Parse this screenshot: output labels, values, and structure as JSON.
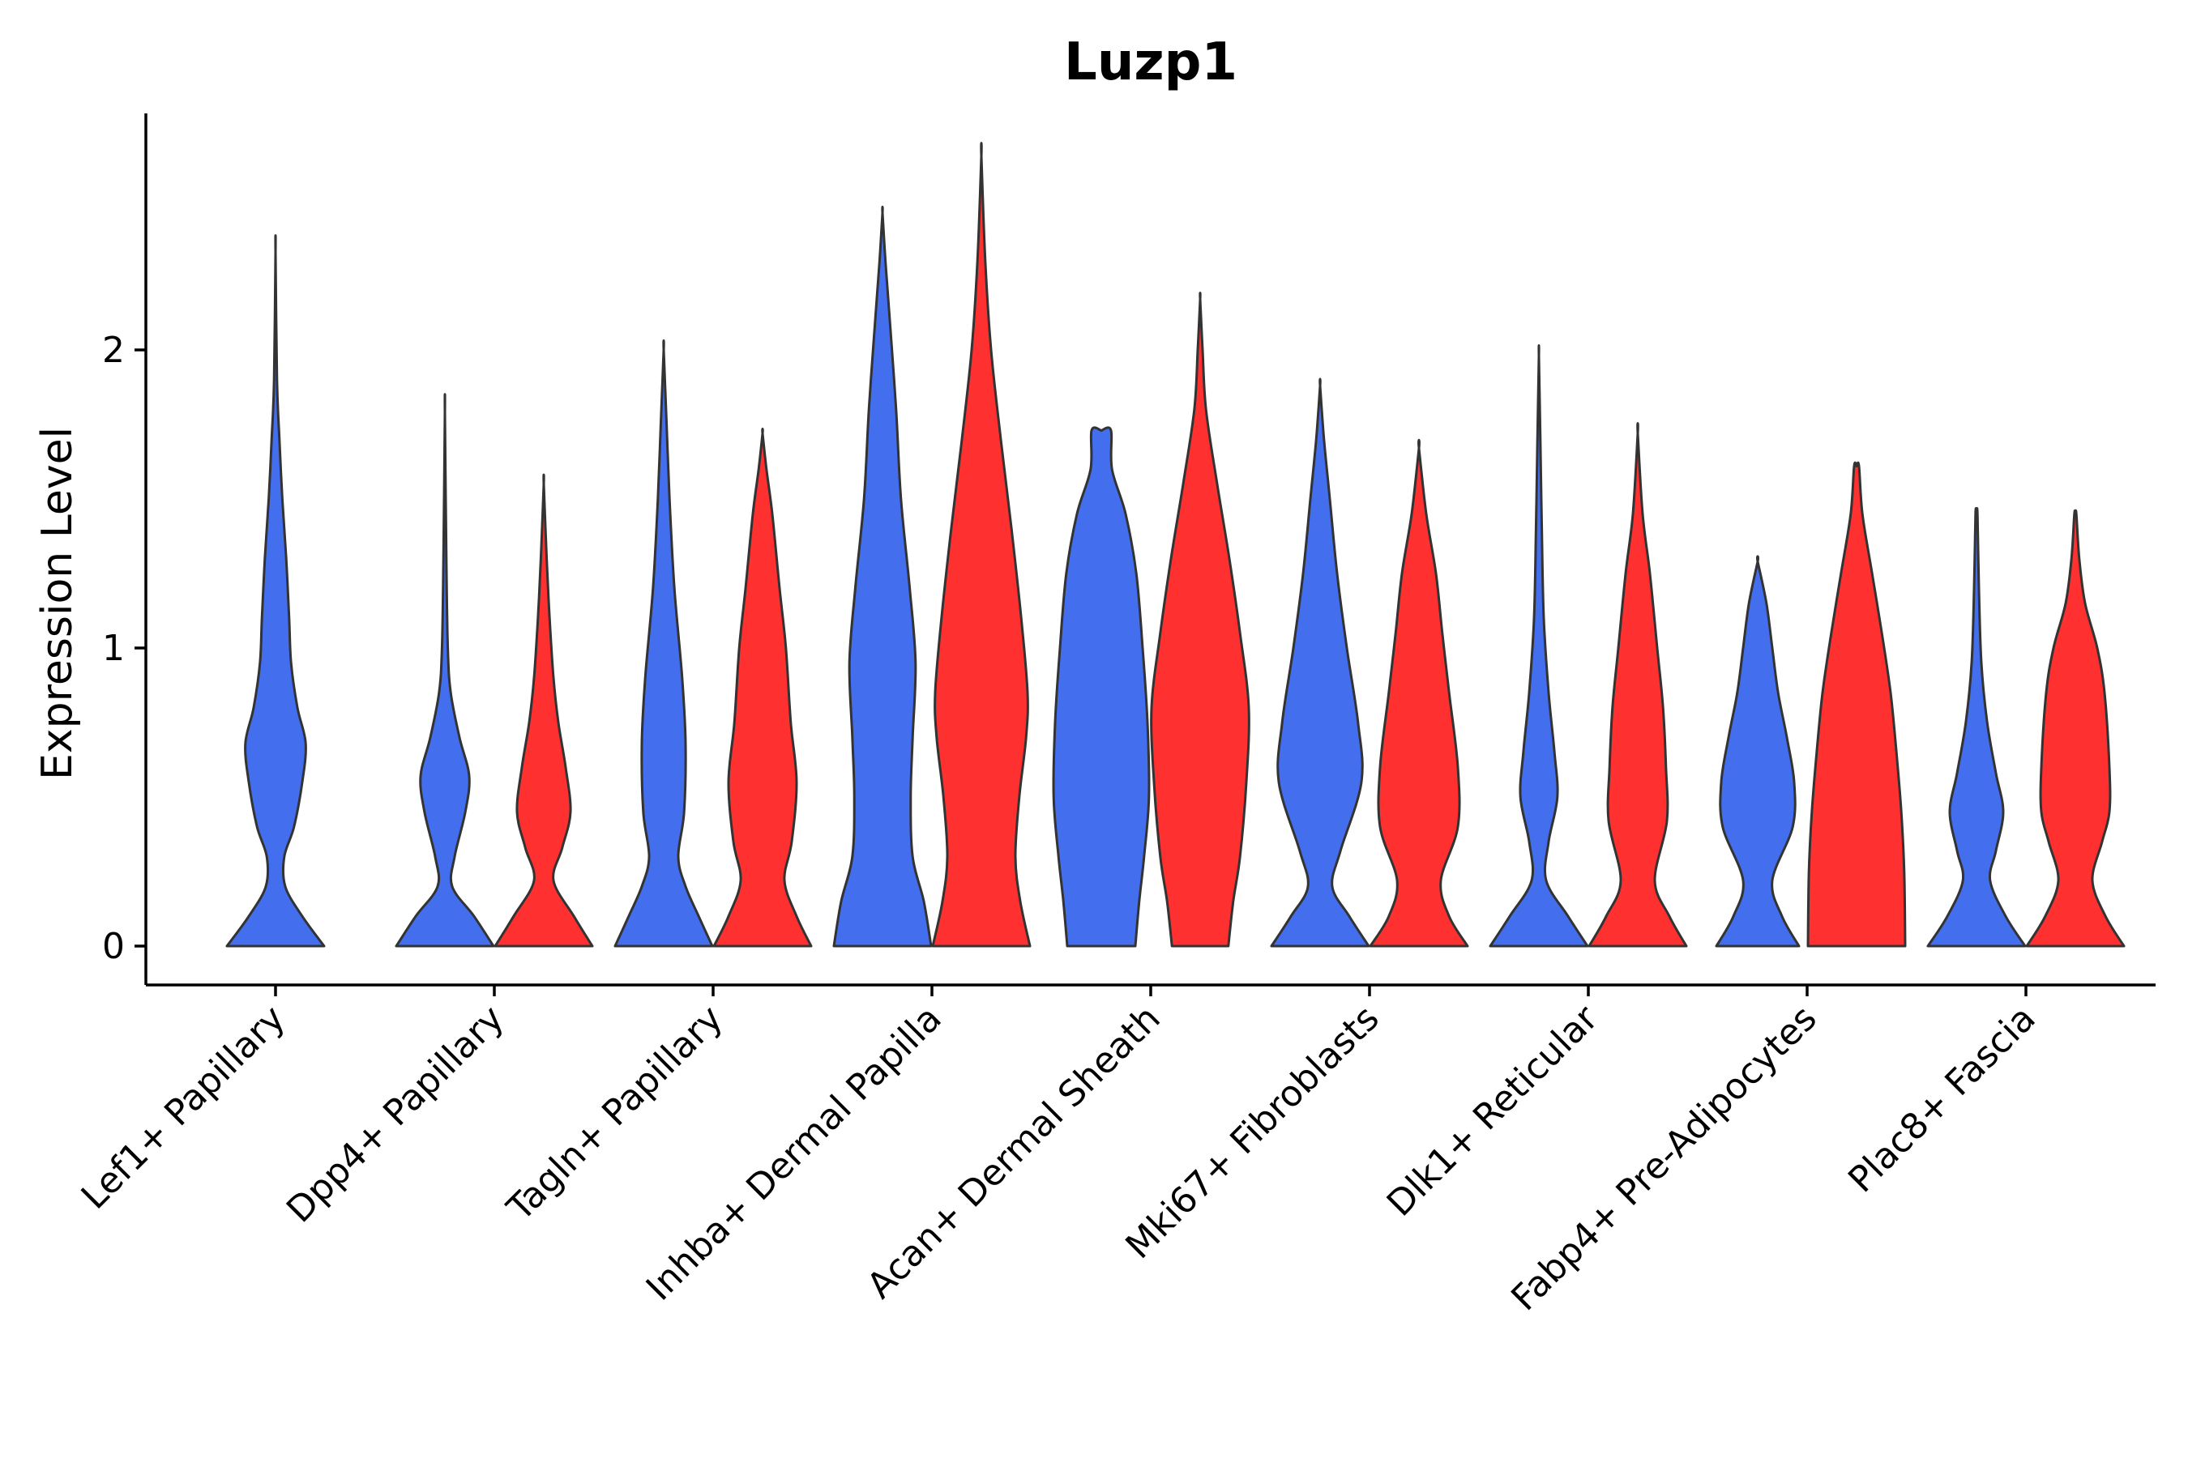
{
  "chart_data": {
    "type": "violin",
    "title": "Luzp1",
    "xlabel": "",
    "ylabel": "Expression Level",
    "ylim": [
      -0.13,
      2.8
    ],
    "yticks": [
      0,
      1,
      2
    ],
    "grid": false,
    "legend": "none",
    "colors": {
      "left": "#436EEE",
      "right": "#FF3030"
    },
    "categories": [
      {
        "label": "Lef1+ Papillary",
        "violins": [
          {
            "side": "left",
            "max": 2.33,
            "profile": [
              [
                0,
                1.0
              ],
              [
                0.1,
                0.55
              ],
              [
                0.2,
                0.2
              ],
              [
                0.3,
                0.18
              ],
              [
                0.4,
                0.38
              ],
              [
                0.55,
                0.55
              ],
              [
                0.68,
                0.62
              ],
              [
                0.8,
                0.45
              ],
              [
                0.95,
                0.32
              ],
              [
                1.1,
                0.28
              ],
              [
                1.3,
                0.22
              ],
              [
                1.5,
                0.14
              ],
              [
                1.7,
                0.08
              ],
              [
                1.9,
                0.03
              ],
              [
                2.33,
                0.0
              ]
            ]
          }
        ]
      },
      {
        "label": "Dpp4+ Papillary",
        "violins": [
          {
            "side": "left",
            "max": 1.79,
            "profile": [
              [
                0,
                1.0
              ],
              [
                0.1,
                0.6
              ],
              [
                0.2,
                0.15
              ],
              [
                0.3,
                0.2
              ],
              [
                0.45,
                0.42
              ],
              [
                0.57,
                0.5
              ],
              [
                0.7,
                0.3
              ],
              [
                0.85,
                0.12
              ],
              [
                1.0,
                0.06
              ],
              [
                1.3,
                0.03
              ],
              [
                1.79,
                0.0
              ]
            ]
          },
          {
            "side": "right",
            "max": 1.55,
            "profile": [
              [
                0,
                1.0
              ],
              [
                0.1,
                0.62
              ],
              [
                0.22,
                0.2
              ],
              [
                0.33,
                0.38
              ],
              [
                0.45,
                0.55
              ],
              [
                0.6,
                0.45
              ],
              [
                0.75,
                0.3
              ],
              [
                0.9,
                0.2
              ],
              [
                1.1,
                0.12
              ],
              [
                1.3,
                0.06
              ],
              [
                1.55,
                0.0
              ]
            ]
          }
        ]
      },
      {
        "label": "Tagln+ Papillary",
        "violins": [
          {
            "side": "left",
            "max": 2.0,
            "profile": [
              [
                0,
                1.0
              ],
              [
                0.1,
                0.72
              ],
              [
                0.2,
                0.45
              ],
              [
                0.3,
                0.3
              ],
              [
                0.45,
                0.42
              ],
              [
                0.68,
                0.45
              ],
              [
                0.9,
                0.38
              ],
              [
                1.2,
                0.22
              ],
              [
                1.5,
                0.12
              ],
              [
                1.75,
                0.06
              ],
              [
                2.0,
                0.0
              ]
            ]
          },
          {
            "side": "right",
            "max": 1.72,
            "profile": [
              [
                0,
                1.0
              ],
              [
                0.1,
                0.7
              ],
              [
                0.22,
                0.45
              ],
              [
                0.35,
                0.6
              ],
              [
                0.55,
                0.7
              ],
              [
                0.75,
                0.58
              ],
              [
                1.0,
                0.48
              ],
              [
                1.2,
                0.35
              ],
              [
                1.45,
                0.2
              ],
              [
                1.6,
                0.08
              ],
              [
                1.72,
                0.0
              ]
            ]
          }
        ]
      },
      {
        "label": "Inhba+ Dermal Papilla",
        "violins": [
          {
            "side": "left",
            "max": 2.46,
            "profile": [
              [
                0,
                1.0
              ],
              [
                0.15,
                0.85
              ],
              [
                0.3,
                0.62
              ],
              [
                0.5,
                0.58
              ],
              [
                0.7,
                0.62
              ],
              [
                0.95,
                0.68
              ],
              [
                1.2,
                0.56
              ],
              [
                1.5,
                0.38
              ],
              [
                1.8,
                0.28
              ],
              [
                2.1,
                0.15
              ],
              [
                2.3,
                0.06
              ],
              [
                2.46,
                0.0
              ]
            ]
          },
          {
            "side": "right",
            "max": 2.65,
            "profile": [
              [
                0,
                1.0
              ],
              [
                0.15,
                0.8
              ],
              [
                0.3,
                0.7
              ],
              [
                0.5,
                0.78
              ],
              [
                0.7,
                0.92
              ],
              [
                0.85,
                0.95
              ],
              [
                1.1,
                0.82
              ],
              [
                1.4,
                0.62
              ],
              [
                1.7,
                0.4
              ],
              [
                2.0,
                0.2
              ],
              [
                2.3,
                0.08
              ],
              [
                2.65,
                0.0
              ]
            ]
          }
        ]
      },
      {
        "label": "Acan+ Dermal Sheath",
        "violins": [
          {
            "side": "left",
            "max": 1.73,
            "profile": [
              [
                0,
                0.7
              ],
              [
                0.15,
                0.78
              ],
              [
                0.3,
                0.88
              ],
              [
                0.5,
                0.98
              ],
              [
                0.75,
                0.95
              ],
              [
                1.0,
                0.85
              ],
              [
                1.25,
                0.72
              ],
              [
                1.45,
                0.5
              ],
              [
                1.6,
                0.22
              ],
              [
                1.73,
                0.2
              ],
              [
                1.73,
                0.0
              ]
            ]
          },
          {
            "side": "right",
            "max": 2.17,
            "profile": [
              [
                0,
                0.58
              ],
              [
                0.15,
                0.68
              ],
              [
                0.3,
                0.82
              ],
              [
                0.55,
                0.95
              ],
              [
                0.8,
                1.0
              ],
              [
                1.05,
                0.82
              ],
              [
                1.3,
                0.6
              ],
              [
                1.55,
                0.35
              ],
              [
                1.8,
                0.12
              ],
              [
                2.0,
                0.05
              ],
              [
                2.17,
                0.0
              ]
            ]
          }
        ]
      },
      {
        "label": "Mki67+ Fibroblasts",
        "violins": [
          {
            "side": "left",
            "max": 1.88,
            "profile": [
              [
                0,
                1.0
              ],
              [
                0.1,
                0.6
              ],
              [
                0.2,
                0.25
              ],
              [
                0.32,
                0.42
              ],
              [
                0.55,
                0.85
              ],
              [
                0.75,
                0.78
              ],
              [
                1.0,
                0.55
              ],
              [
                1.25,
                0.35
              ],
              [
                1.5,
                0.2
              ],
              [
                1.7,
                0.08
              ],
              [
                1.88,
                0.0
              ]
            ]
          },
          {
            "side": "right",
            "max": 1.67,
            "profile": [
              [
                0,
                1.0
              ],
              [
                0.1,
                0.62
              ],
              [
                0.22,
                0.45
              ],
              [
                0.4,
                0.8
              ],
              [
                0.6,
                0.8
              ],
              [
                0.85,
                0.62
              ],
              [
                1.05,
                0.48
              ],
              [
                1.25,
                0.35
              ],
              [
                1.45,
                0.15
              ],
              [
                1.67,
                0.0
              ]
            ]
          }
        ]
      },
      {
        "label": "Dlk1+ Reticular",
        "violins": [
          {
            "side": "left",
            "max": 1.98,
            "profile": [
              [
                0,
                1.0
              ],
              [
                0.1,
                0.6
              ],
              [
                0.22,
                0.15
              ],
              [
                0.35,
                0.2
              ],
              [
                0.5,
                0.38
              ],
              [
                0.65,
                0.32
              ],
              [
                0.85,
                0.2
              ],
              [
                1.1,
                0.1
              ],
              [
                1.4,
                0.06
              ],
              [
                1.7,
                0.03
              ],
              [
                1.98,
                0.0
              ]
            ]
          },
          {
            "side": "right",
            "max": 1.72,
            "profile": [
              [
                0,
                1.0
              ],
              [
                0.1,
                0.65
              ],
              [
                0.22,
                0.35
              ],
              [
                0.42,
                0.6
              ],
              [
                0.6,
                0.58
              ],
              [
                0.8,
                0.52
              ],
              [
                1.0,
                0.4
              ],
              [
                1.25,
                0.25
              ],
              [
                1.45,
                0.1
              ],
              [
                1.72,
                0.0
              ]
            ]
          }
        ]
      },
      {
        "label": "Fabp4+ Pre-Adipocytes",
        "violins": [
          {
            "side": "left",
            "max": 1.29,
            "profile": [
              [
                0,
                0.85
              ],
              [
                0.1,
                0.5
              ],
              [
                0.22,
                0.3
              ],
              [
                0.4,
                0.72
              ],
              [
                0.55,
                0.75
              ],
              [
                0.7,
                0.6
              ],
              [
                0.85,
                0.42
              ],
              [
                1.0,
                0.3
              ],
              [
                1.15,
                0.18
              ],
              [
                1.29,
                0.0
              ]
            ]
          },
          {
            "side": "right",
            "max": 1.61,
            "profile": [
              [
                0,
                1.0
              ],
              [
                0.25,
                0.98
              ],
              [
                0.45,
                0.92
              ],
              [
                0.65,
                0.82
              ],
              [
                0.85,
                0.7
              ],
              [
                1.05,
                0.52
              ],
              [
                1.25,
                0.32
              ],
              [
                1.45,
                0.12
              ],
              [
                1.61,
                0.05
              ],
              [
                1.61,
                0.0
              ]
            ]
          }
        ]
      },
      {
        "label": "Plac8+ Fascia",
        "violins": [
          {
            "side": "left",
            "max": 1.45,
            "profile": [
              [
                0,
                1.0
              ],
              [
                0.1,
                0.6
              ],
              [
                0.22,
                0.28
              ],
              [
                0.32,
                0.4
              ],
              [
                0.45,
                0.55
              ],
              [
                0.58,
                0.4
              ],
              [
                0.75,
                0.22
              ],
              [
                0.95,
                0.1
              ],
              [
                1.2,
                0.05
              ],
              [
                1.45,
                0.02
              ],
              [
                1.45,
                0.0
              ]
            ]
          },
          {
            "side": "right",
            "max": 1.45,
            "profile": [
              [
                0,
                1.0
              ],
              [
                0.1,
                0.62
              ],
              [
                0.22,
                0.35
              ],
              [
                0.35,
                0.55
              ],
              [
                0.45,
                0.7
              ],
              [
                0.6,
                0.7
              ],
              [
                0.85,
                0.6
              ],
              [
                1.0,
                0.45
              ],
              [
                1.15,
                0.2
              ],
              [
                1.3,
                0.08
              ],
              [
                1.45,
                0.02
              ],
              [
                1.45,
                0.0
              ]
            ]
          }
        ]
      }
    ]
  }
}
